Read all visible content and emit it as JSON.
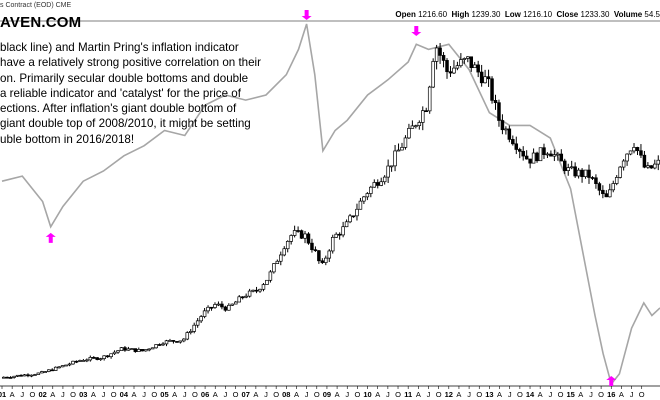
{
  "header": {
    "contract": "s Contract (EOD) CME",
    "open_label": "Open",
    "open_value": "1216.60",
    "high_label": "High",
    "high_value": "1239.30",
    "low_label": "Low",
    "low_value": "1216.10",
    "close_label": "Close",
    "close_value": "1233.30",
    "volume_label": "Volume",
    "volume_value": "54.5"
  },
  "watermark": "AVEN.COM",
  "annotation": [
    "black line) and Martin Pring's inflation indicator",
    "have a relatively strong positive correlation on their",
    "on. Primarily secular double bottoms and double",
    "a reliable indicator and 'catalyst' for the price of",
    "ections. After inflation's giant double bottom of",
    "giant double top of 2008/2010, it might be setting",
    "uble bottom in 2016/2018!"
  ],
  "colors": {
    "candle_up": "#ffffff",
    "candle_down": "#000000",
    "indicator_line": "#a6a6a6",
    "arrow": "#ff00ff",
    "axis": "#000000"
  },
  "chart_data": {
    "type": "line",
    "title": "",
    "x_ticks": [
      "01",
      "A",
      "J",
      "O",
      "02",
      "A",
      "J",
      "O",
      "03",
      "A",
      "J",
      "O",
      "04",
      "A",
      "J",
      "O",
      "05",
      "A",
      "J",
      "O",
      "06",
      "A",
      "J",
      "O",
      "07",
      "A",
      "J",
      "O",
      "08",
      "A",
      "J",
      "O",
      "09",
      "A",
      "J",
      "O",
      "10",
      "A",
      "J",
      "O",
      "11",
      "A",
      "J",
      "O",
      "12",
      "A",
      "J",
      "O",
      "13",
      "A",
      "J",
      "O",
      "14",
      "A",
      "J",
      "O",
      "15",
      "A",
      "J",
      "O",
      "16",
      "A",
      "J",
      "O"
    ],
    "x_range": [
      2001.0,
      2017.2
    ],
    "grid": false,
    "legend": "none",
    "series": [
      {
        "type": "candlestick",
        "x": [
          2001.0,
          2001.5,
          2002.0,
          2002.5,
          2003.0,
          2003.5,
          2004.0,
          2004.5,
          2005.0,
          2005.5,
          2006.0,
          2006.3,
          2006.6,
          2007.0,
          2007.3,
          2007.6,
          2008.0,
          2008.2,
          2008.5,
          2008.8,
          2008.9,
          2009.2,
          2009.5,
          2010.0,
          2010.5,
          2011.0,
          2011.5,
          2011.7,
          2012.0,
          2012.5,
          2013.0,
          2013.3,
          2013.6,
          2014.0,
          2014.5,
          2015.0,
          2015.5,
          2015.9,
          2016.0,
          2016.3,
          2016.6,
          2016.9,
          2017.2
        ],
        "values": [
          270,
          280,
          290,
          320,
          350,
          360,
          400,
          390,
          430,
          440,
          560,
          600,
          580,
          640,
          660,
          720,
          870,
          920,
          910,
          820,
          760,
          900,
          950,
          1100,
          1200,
          1350,
          1500,
          1780,
          1650,
          1700,
          1600,
          1420,
          1350,
          1250,
          1300,
          1200,
          1180,
          1070,
          1100,
          1250,
          1330,
          1200,
          1235
        ]
      },
      {
        "type": "line",
        "x": [
          2001.0,
          2001.5,
          2002.0,
          2002.2,
          2002.5,
          2003.0,
          2003.5,
          2004.0,
          2004.5,
          2005.0,
          2005.5,
          2006.0,
          2006.5,
          2007.0,
          2007.5,
          2008.0,
          2008.3,
          2008.5,
          2008.7,
          2008.9,
          2009.2,
          2009.5,
          2010.0,
          2010.5,
          2011.0,
          2011.2,
          2011.5,
          2012.0,
          2012.5,
          2013.0,
          2013.5,
          2014.0,
          2014.5,
          2015.0,
          2015.3,
          2015.6,
          2015.8,
          2016.0,
          2016.2,
          2016.5,
          2016.8,
          2017.0,
          2017.2
        ],
        "values": [
          0.38,
          0.4,
          0.3,
          0.2,
          0.28,
          0.38,
          0.42,
          0.48,
          0.52,
          0.58,
          0.56,
          0.68,
          0.72,
          0.7,
          0.72,
          0.8,
          0.9,
          1.0,
          0.8,
          0.5,
          0.58,
          0.62,
          0.72,
          0.78,
          0.85,
          0.92,
          0.9,
          0.92,
          0.82,
          0.65,
          0.6,
          0.6,
          0.55,
          0.35,
          0.1,
          -0.15,
          -0.3,
          -0.42,
          -0.38,
          -0.2,
          -0.1,
          -0.15,
          -0.12
        ]
      }
    ]
  }
}
